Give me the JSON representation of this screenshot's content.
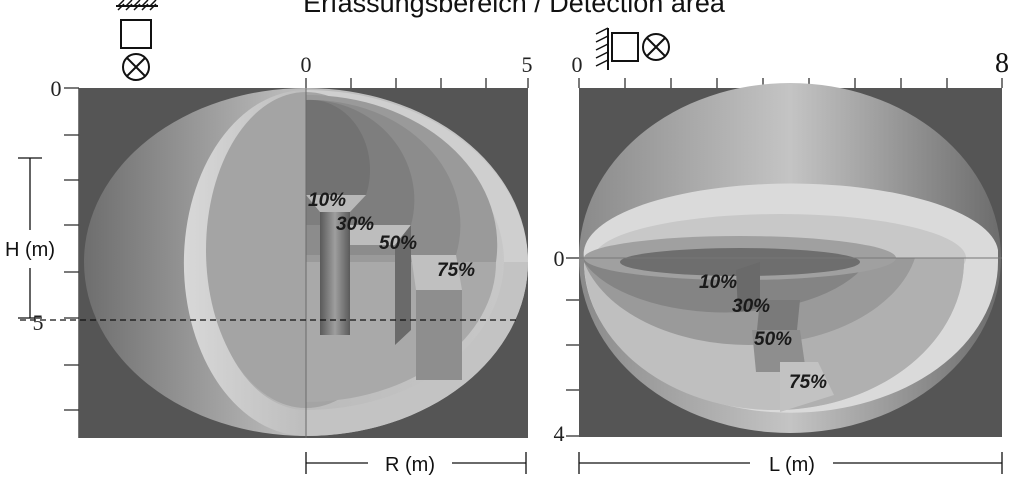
{
  "title": "Erfassungsbereich / Detection area",
  "left_view": {
    "axis_label_x": "R (m)",
    "axis_label_y": "H (m)",
    "x_ticks": [
      "0",
      "5"
    ],
    "y_ticks": [
      "0",
      "5"
    ],
    "pct_labels": [
      "10%",
      "30%",
      "50%",
      "75%"
    ]
  },
  "right_view": {
    "axis_label_x": "L (m)",
    "x_ticks": [
      "0",
      "8"
    ],
    "y_ticks": [
      "0",
      "4"
    ],
    "pct_labels": [
      "10%",
      "30%",
      "50%",
      "75%"
    ]
  },
  "colors": {
    "background": "#555555",
    "zone_outer": "#b5b5b5",
    "zone_ring": "#d2d2d2",
    "zone_inner": "#8a8a8a"
  }
}
